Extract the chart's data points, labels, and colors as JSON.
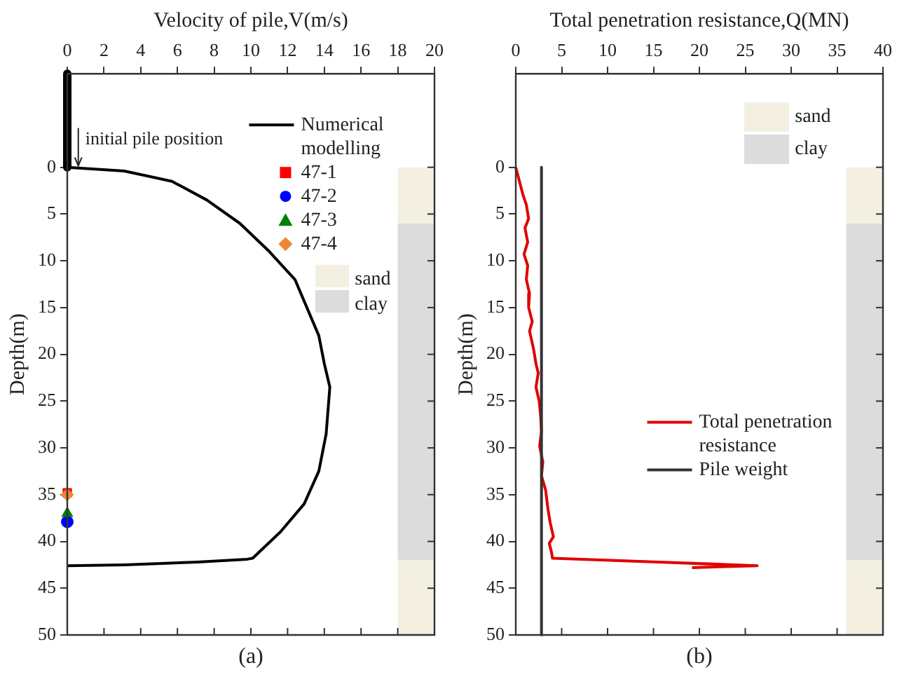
{
  "chart_data": [
    {
      "type": "line",
      "xlabel": "Velocity of pile,V(m/s)",
      "ylabel": "Depth(m)",
      "xlim": [
        0,
        20
      ],
      "xticks": [
        0,
        2,
        4,
        6,
        8,
        10,
        12,
        14,
        16,
        18,
        20
      ],
      "ylim": [
        50,
        -10
      ],
      "yticks": [
        0,
        5,
        10,
        15,
        20,
        25,
        30,
        35,
        40,
        45,
        50
      ],
      "grid": false,
      "legend": "top right",
      "series": [
        {
          "color": "#000000",
          "x": [
            0,
            0
          ],
          "values": [
            -10,
            0
          ]
        },
        {
          "name": "Numerical modelling",
          "color": "#000000",
          "x": [
            0,
            3.1,
            5.7,
            7.6,
            9.4,
            11.0,
            12.4,
            13.7,
            14.0,
            14.3,
            14.1,
            13.7,
            12.9,
            11.6,
            10.1,
            9.8,
            7.1,
            3.1,
            0
          ],
          "values": [
            0,
            0.4,
            1.5,
            3.5,
            6,
            9,
            12,
            18,
            21,
            23.5,
            28.5,
            32.5,
            36,
            39,
            41.8,
            41.9,
            42.2,
            42.5,
            42.6
          ]
        },
        {
          "type": "scatter",
          "name": "47-1",
          "color": "#ff0000",
          "marker": "square",
          "x": [
            0
          ],
          "values": [
            34.8
          ]
        },
        {
          "type": "scatter",
          "name": "47-2",
          "color": "#0000ff",
          "marker": "circle",
          "x": [
            0
          ],
          "values": [
            37.9
          ]
        },
        {
          "type": "scatter",
          "name": "47-3",
          "color": "#008000",
          "marker": "triangle",
          "x": [
            0
          ],
          "values": [
            37
          ]
        },
        {
          "type": "scatter",
          "name": "47-4",
          "color": "#ee8833",
          "marker": "diamond",
          "x": [
            0
          ],
          "values": [
            35
          ]
        }
      ],
      "bands": [
        {
          "axis": "y",
          "from": 0,
          "to": 6,
          "label": "sand",
          "color": "#f3f0e2"
        },
        {
          "axis": "y",
          "from": 6,
          "to": 42,
          "label": "clay",
          "color": "#dcdcdc"
        },
        {
          "axis": "y",
          "from": 42,
          "to": 50,
          "color": "#f3f0e2"
        }
      ],
      "annotations": [
        {
          "text": "initial pile position",
          "x": 0.6,
          "y": 0
        },
        "(a)"
      ]
    },
    {
      "type": "line",
      "xlabel": "Total penetration resistance,Q(MN)",
      "ylabel": "Depth(m)",
      "xlim": [
        0,
        40
      ],
      "xticks": [
        0,
        5,
        10,
        15,
        20,
        25,
        30,
        35,
        40
      ],
      "ylim": [
        50,
        -10
      ],
      "yticks": [
        0,
        5,
        10,
        15,
        20,
        25,
        30,
        35,
        40,
        45,
        50
      ],
      "grid": false,
      "legend": "right",
      "series": [
        {
          "name": "Total penetration resistance",
          "color": "#e00000",
          "x": [
            0,
            0.4,
            0.8,
            1.15,
            1.4,
            1.0,
            1.3,
            0.9,
            1.3,
            1.15,
            1.5,
            1.4,
            1.8,
            1.5,
            1.95,
            2.2,
            2.45,
            2.2,
            2.55,
            2.7,
            2.8,
            2.6,
            2.95,
            2.8,
            3.25,
            3.5,
            3.75,
            4.1,
            3.65,
            3.9,
            4.0,
            15.5,
            26.3,
            19.2
          ],
          "values": [
            0,
            1.5,
            3,
            4,
            5.5,
            6.5,
            8,
            9.3,
            10.5,
            12,
            13.5,
            15,
            16.5,
            17.5,
            19.5,
            21,
            22,
            23.5,
            25,
            26.5,
            28.2,
            29.8,
            31.5,
            33,
            34.5,
            36.5,
            38,
            39.5,
            40.2,
            41.2,
            41.8,
            42.2,
            42.6,
            42.8
          ]
        },
        {
          "name": "Pile weight",
          "color": "#333333",
          "x": [
            2.8,
            2.8
          ],
          "values": [
            0,
            50
          ]
        }
      ],
      "bands": [
        {
          "axis": "y",
          "from": 0,
          "to": 6,
          "label": "sand",
          "color": "#f3f0e2"
        },
        {
          "axis": "y",
          "from": 6,
          "to": 42,
          "label": "clay",
          "color": "#dcdcdc"
        },
        {
          "axis": "y",
          "from": 42,
          "to": 50,
          "color": "#f3f0e2"
        }
      ],
      "annotations": [
        "(b)"
      ]
    }
  ]
}
